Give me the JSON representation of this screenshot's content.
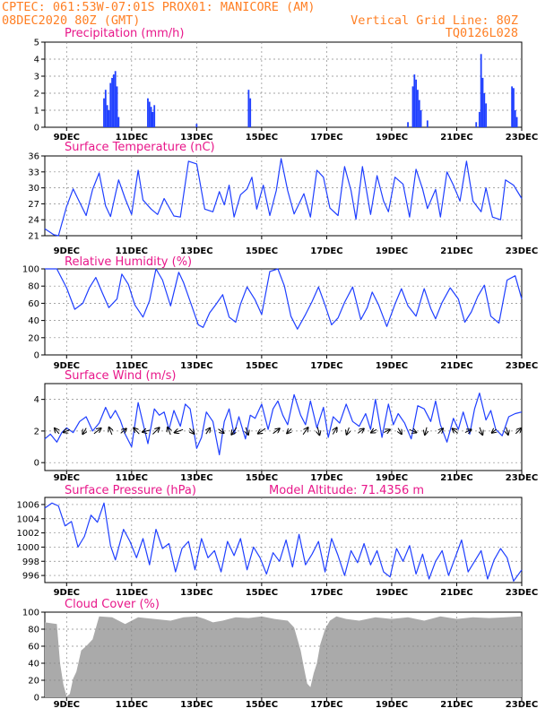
{
  "header": {
    "line1_left": "CPTEC:   061:53W-07:01S   PROX01: MANICORE (AM)",
    "line2_left": "08DEC2020 80Z (GMT)",
    "line2_right": "Vertical Grid Line: 80Z",
    "line3_right": "TQ0126L028"
  },
  "colors": {
    "series": "#1f3fff",
    "title": "#e8178a",
    "header": "#ff7f24",
    "cloud_fill": "#aaaaaa",
    "grid": "#888888"
  },
  "chart_data": [
    {
      "type": "bar",
      "title": "Precipitation (mm/h)",
      "xlabel": "",
      "ylabel": "",
      "ylim": [
        0,
        5
      ],
      "yticks": [
        "0",
        "1",
        "2",
        "3",
        "4",
        "5"
      ],
      "xticks": [
        "9DEC",
        "11DEC",
        "13DEC",
        "15DEC",
        "17DEC",
        "19DEC",
        "21DEC",
        "23DEC"
      ],
      "x_day_range": [
        8.33,
        23.0
      ],
      "grid": true,
      "events": [
        {
          "day": 10.15,
          "value": 1.7
        },
        {
          "day": 10.2,
          "value": 2.2
        },
        {
          "day": 10.25,
          "value": 1.3
        },
        {
          "day": 10.3,
          "value": 1.0
        },
        {
          "day": 10.35,
          "value": 2.6
        },
        {
          "day": 10.4,
          "value": 2.9
        },
        {
          "day": 10.45,
          "value": 3.1
        },
        {
          "day": 10.5,
          "value": 3.3
        },
        {
          "day": 10.55,
          "value": 2.4
        },
        {
          "day": 10.6,
          "value": 0.6
        },
        {
          "day": 11.5,
          "value": 1.7
        },
        {
          "day": 11.55,
          "value": 1.5
        },
        {
          "day": 11.6,
          "value": 1.2
        },
        {
          "day": 11.65,
          "value": 0.9
        },
        {
          "day": 11.7,
          "value": 1.3
        },
        {
          "day": 13.0,
          "value": 0.2
        },
        {
          "day": 14.6,
          "value": 2.2
        },
        {
          "day": 14.65,
          "value": 1.7
        },
        {
          "day": 19.5,
          "value": 0.3
        },
        {
          "day": 19.65,
          "value": 2.4
        },
        {
          "day": 19.7,
          "value": 3.1
        },
        {
          "day": 19.75,
          "value": 2.8
        },
        {
          "day": 19.8,
          "value": 2.2
        },
        {
          "day": 19.85,
          "value": 1.6
        },
        {
          "day": 19.9,
          "value": 1.0
        },
        {
          "day": 20.1,
          "value": 0.4
        },
        {
          "day": 21.6,
          "value": 0.3
        },
        {
          "day": 21.7,
          "value": 0.9
        },
        {
          "day": 21.75,
          "value": 4.3
        },
        {
          "day": 21.8,
          "value": 2.9
        },
        {
          "day": 21.85,
          "value": 2.0
        },
        {
          "day": 21.9,
          "value": 1.4
        },
        {
          "day": 22.7,
          "value": 2.4
        },
        {
          "day": 22.75,
          "value": 2.3
        },
        {
          "day": 22.8,
          "value": 1.0
        },
        {
          "day": 22.85,
          "value": 0.6
        }
      ]
    },
    {
      "type": "line",
      "title": "Surface Temperature (nC)",
      "xlabel": "",
      "ylabel": "",
      "ylim": [
        21,
        36
      ],
      "yticks": [
        "21",
        "24",
        "27",
        "30",
        "33",
        "36"
      ],
      "xticks": [
        "9DEC",
        "11DEC",
        "13DEC",
        "15DEC",
        "17DEC",
        "19DEC",
        "21DEC",
        "23DEC"
      ],
      "x_day_range": [
        8.33,
        23.0
      ],
      "grid": true,
      "x": [
        8.33,
        8.6,
        8.75,
        9.0,
        9.2,
        9.4,
        9.6,
        9.8,
        10.0,
        10.2,
        10.35,
        10.6,
        10.8,
        11.0,
        11.2,
        11.35,
        11.6,
        11.8,
        12.0,
        12.3,
        12.5,
        12.75,
        13.0,
        13.25,
        13.5,
        13.7,
        13.85,
        14.0,
        14.15,
        14.35,
        14.55,
        14.7,
        14.85,
        15.05,
        15.25,
        15.45,
        15.6,
        15.8,
        16.0,
        16.3,
        16.5,
        16.7,
        16.9,
        17.1,
        17.35,
        17.55,
        17.75,
        17.9,
        18.1,
        18.35,
        18.55,
        18.75,
        18.9,
        19.1,
        19.35,
        19.55,
        19.75,
        19.95,
        20.1,
        20.35,
        20.5,
        20.7,
        20.9,
        21.1,
        21.3,
        21.5,
        21.75,
        21.9,
        22.1,
        22.35,
        22.5,
        22.75,
        23.0
      ],
      "y": [
        22.3,
        21.2,
        21.0,
        26.5,
        29.8,
        27.3,
        24.8,
        29.7,
        32.8,
        26.6,
        24.6,
        31.5,
        28.0,
        25.0,
        33.3,
        27.7,
        26.0,
        25.0,
        28.0,
        24.7,
        24.5,
        35.0,
        34.5,
        26.0,
        25.5,
        29.3,
        26.8,
        30.5,
        24.5,
        28.7,
        29.8,
        32.0,
        26.0,
        30.5,
        24.8,
        29.5,
        35.5,
        29.5,
        25.1,
        28.9,
        24.5,
        33.3,
        32.0,
        26.2,
        24.8,
        34.0,
        29.5,
        24.1,
        34.0,
        25.0,
        32.3,
        27.5,
        25.5,
        32.0,
        30.7,
        24.5,
        33.5,
        29.8,
        26.1,
        29.7,
        24.5,
        33.0,
        30.5,
        27.5,
        35.0,
        27.5,
        25.5,
        30.0,
        24.5,
        24.0,
        31.5,
        30.5,
        28.0
      ]
    },
    {
      "type": "line",
      "title": "Relative Humidity (%)",
      "xlabel": "",
      "ylabel": "",
      "ylim": [
        0,
        100
      ],
      "yticks": [
        "0",
        "20",
        "40",
        "60",
        "80",
        "100"
      ],
      "xticks": [
        "9DEC",
        "11DEC",
        "13DEC",
        "15DEC",
        "17DEC",
        "19DEC",
        "21DEC",
        "23DEC"
      ],
      "x_day_range": [
        8.33,
        23.0
      ],
      "grid": true,
      "x": [
        8.33,
        8.7,
        9.0,
        9.25,
        9.5,
        9.7,
        9.9,
        10.1,
        10.3,
        10.55,
        10.7,
        10.9,
        11.1,
        11.35,
        11.55,
        11.75,
        11.95,
        12.2,
        12.45,
        12.6,
        12.85,
        13.05,
        13.2,
        13.4,
        13.6,
        13.8,
        14.0,
        14.2,
        14.35,
        14.55,
        14.8,
        15.0,
        15.25,
        15.5,
        15.7,
        15.9,
        16.1,
        16.35,
        16.55,
        16.75,
        16.95,
        17.15,
        17.35,
        17.55,
        17.8,
        18.05,
        18.25,
        18.4,
        18.6,
        18.85,
        19.1,
        19.3,
        19.5,
        19.75,
        20.0,
        20.2,
        20.35,
        20.55,
        20.8,
        21.05,
        21.25,
        21.45,
        21.65,
        21.85,
        22.05,
        22.3,
        22.55,
        22.8,
        23.0
      ],
      "y": [
        100,
        100,
        78,
        53,
        60,
        78,
        90,
        72,
        55,
        65,
        94,
        82,
        58,
        44,
        63,
        100,
        87,
        57,
        96,
        84,
        57,
        35,
        32,
        49,
        59,
        70,
        44,
        38,
        59,
        79,
        64,
        47,
        97,
        100,
        80,
        45,
        30,
        47,
        62,
        79,
        58,
        35,
        43,
        61,
        79,
        41,
        55,
        73,
        58,
        33,
        59,
        77,
        57,
        45,
        77,
        54,
        42,
        61,
        78,
        65,
        38,
        50,
        68,
        81,
        45,
        37,
        87,
        92,
        65
      ]
    },
    {
      "type": "line",
      "title": "Surface Wind (m/s)",
      "xlabel": "",
      "ylabel": "",
      "ylim": [
        -0.5,
        5.0
      ],
      "yticks": [
        "0",
        "2",
        "4"
      ],
      "xticks": [
        "9DEC",
        "11DEC",
        "13DEC",
        "15DEC",
        "17DEC",
        "19DEC",
        "21DEC",
        "23DEC"
      ],
      "x_day_range": [
        8.33,
        23.0
      ],
      "grid": true,
      "x": [
        8.33,
        8.5,
        8.7,
        8.85,
        9.0,
        9.2,
        9.4,
        9.6,
        9.8,
        10.0,
        10.2,
        10.35,
        10.5,
        10.65,
        10.8,
        11.0,
        11.2,
        11.35,
        11.5,
        11.7,
        11.85,
        12.0,
        12.15,
        12.3,
        12.5,
        12.65,
        12.8,
        13.0,
        13.15,
        13.3,
        13.5,
        13.7,
        13.85,
        14.0,
        14.15,
        14.3,
        14.5,
        14.65,
        14.8,
        15.0,
        15.2,
        15.35,
        15.5,
        15.65,
        15.8,
        16.0,
        16.2,
        16.35,
        16.5,
        16.7,
        16.9,
        17.05,
        17.2,
        17.4,
        17.6,
        17.8,
        18.0,
        18.2,
        18.35,
        18.5,
        18.7,
        18.9,
        19.05,
        19.2,
        19.4,
        19.6,
        19.8,
        20.0,
        20.2,
        20.35,
        20.5,
        20.7,
        20.9,
        21.05,
        21.2,
        21.4,
        21.55,
        21.7,
        21.9,
        22.05,
        22.2,
        22.4,
        22.6,
        22.8,
        23.0
      ],
      "y": [
        1.5,
        1.8,
        1.3,
        1.9,
        2.2,
        1.9,
        2.6,
        2.9,
        2.0,
        2.5,
        3.5,
        2.8,
        3.3,
        2.7,
        1.8,
        1.0,
        3.8,
        2.5,
        1.2,
        3.4,
        3.0,
        3.2,
        2.1,
        3.3,
        2.3,
        3.7,
        3.4,
        0.9,
        1.6,
        3.2,
        2.6,
        0.5,
        2.6,
        3.4,
        1.8,
        2.9,
        1.5,
        3.0,
        2.8,
        3.7,
        2.1,
        3.4,
        3.9,
        3.0,
        2.4,
        4.3,
        3.0,
        2.4,
        3.9,
        2.2,
        3.5,
        1.6,
        2.9,
        2.5,
        3.7,
        2.6,
        2.3,
        3.1,
        2.1,
        4.0,
        1.6,
        3.7,
        2.4,
        3.1,
        2.5,
        1.5,
        3.6,
        3.4,
        2.6,
        3.9,
        2.4,
        1.3,
        2.8,
        2.1,
        3.2,
        1.8,
        3.4,
        4.4,
        2.7,
        3.3,
        2.1,
        1.7,
        2.9,
        3.1,
        3.2
      ],
      "vectors": [
        {
          "day": 8.7,
          "dx": -0.45,
          "dy": 0.55
        },
        {
          "day": 9.0,
          "dx": -0.65,
          "dy": -0.25
        },
        {
          "day": 9.55,
          "dx": -0.35,
          "dy": -0.6
        },
        {
          "day": 9.95,
          "dx": 0.7,
          "dy": 0.55
        },
        {
          "day": 10.35,
          "dx": -0.3,
          "dy": 0.75
        },
        {
          "day": 10.75,
          "dx": 0.55,
          "dy": 0.45
        },
        {
          "day": 11.15,
          "dx": -0.55,
          "dy": 0.6
        },
        {
          "day": 11.45,
          "dx": -0.75,
          "dy": -0.2
        },
        {
          "day": 11.75,
          "dx": 0.65,
          "dy": 0.65
        },
        {
          "day": 12.15,
          "dx": -0.3,
          "dy": 0.75
        },
        {
          "day": 12.45,
          "dx": -0.85,
          "dy": -0.3
        },
        {
          "day": 12.85,
          "dx": 0.45,
          "dy": -0.55
        },
        {
          "day": 13.35,
          "dx": 0.4,
          "dy": 0.6
        },
        {
          "day": 13.75,
          "dx": 0.55,
          "dy": -0.4
        },
        {
          "day": 14.15,
          "dx": -0.5,
          "dy": -0.7
        },
        {
          "day": 14.55,
          "dx": 0.25,
          "dy": -0.75
        },
        {
          "day": 15.0,
          "dx": -0.75,
          "dy": -0.5
        },
        {
          "day": 15.45,
          "dx": 0.65,
          "dy": 0.5
        },
        {
          "day": 15.85,
          "dx": -0.45,
          "dy": -0.45
        },
        {
          "day": 16.35,
          "dx": 0.5,
          "dy": 0.7
        },
        {
          "day": 16.75,
          "dx": 0.2,
          "dy": -0.8
        },
        {
          "day": 17.25,
          "dx": 0.4,
          "dy": 0.65
        },
        {
          "day": 17.65,
          "dx": -0.25,
          "dy": -0.7
        },
        {
          "day": 18.05,
          "dx": 0.6,
          "dy": 0.45
        },
        {
          "day": 18.45,
          "dx": -0.55,
          "dy": -0.3
        },
        {
          "day": 18.85,
          "dx": 0.6,
          "dy": 0.3
        },
        {
          "day": 19.25,
          "dx": 0.35,
          "dy": -0.6
        },
        {
          "day": 19.65,
          "dx": 0.7,
          "dy": -0.3
        },
        {
          "day": 20.05,
          "dx": -0.2,
          "dy": -0.75
        },
        {
          "day": 20.5,
          "dx": 0.5,
          "dy": 0.5
        },
        {
          "day": 20.95,
          "dx": -0.55,
          "dy": 0.45
        },
        {
          "day": 21.35,
          "dx": 0.6,
          "dy": 0.3
        },
        {
          "day": 21.75,
          "dx": 0.3,
          "dy": -0.75
        },
        {
          "day": 22.15,
          "dx": -0.45,
          "dy": -0.35
        },
        {
          "day": 22.55,
          "dx": 0.2,
          "dy": -0.75
        },
        {
          "day": 22.9,
          "dx": 0.55,
          "dy": 0.55
        }
      ]
    },
    {
      "type": "line",
      "title": "Surface Pressure (hPa)",
      "annotation": "Model Altitude: 71.4356 m",
      "xlabel": "",
      "ylabel": "",
      "ylim": [
        995,
        1007
      ],
      "yticks": [
        "996",
        "998",
        "1000",
        "1002",
        "1004",
        "1006"
      ],
      "xticks": [
        "9DEC",
        "11DEC",
        "13DEC",
        "15DEC",
        "17DEC",
        "19DEC",
        "21DEC",
        "23DEC"
      ],
      "x_day_range": [
        8.33,
        23.0
      ],
      "grid": true,
      "x": [
        8.33,
        8.55,
        8.75,
        8.95,
        9.15,
        9.35,
        9.55,
        9.75,
        9.95,
        10.15,
        10.35,
        10.5,
        10.75,
        10.95,
        11.15,
        11.35,
        11.55,
        11.75,
        11.95,
        12.15,
        12.35,
        12.55,
        12.75,
        12.95,
        13.15,
        13.35,
        13.55,
        13.75,
        13.95,
        14.15,
        14.35,
        14.55,
        14.75,
        14.95,
        15.15,
        15.35,
        15.55,
        15.75,
        15.95,
        16.15,
        16.35,
        16.55,
        16.75,
        16.95,
        17.15,
        17.35,
        17.55,
        17.75,
        17.95,
        18.15,
        18.35,
        18.55,
        18.75,
        18.95,
        19.15,
        19.35,
        19.55,
        19.75,
        19.95,
        20.15,
        20.35,
        20.55,
        20.75,
        20.95,
        21.15,
        21.35,
        21.55,
        21.75,
        21.95,
        22.15,
        22.35,
        22.55,
        22.75,
        23.0
      ],
      "y": [
        1005.5,
        1006.2,
        1005.8,
        1003.0,
        1003.6,
        1000.0,
        1001.5,
        1004.5,
        1003.5,
        1006.2,
        1000.2,
        998.2,
        1002.5,
        1000.8,
        998.5,
        1001.2,
        997.5,
        1002.5,
        999.8,
        1000.5,
        996.5,
        999.8,
        1000.8,
        996.8,
        1001.2,
        998.5,
        999.5,
        996.5,
        1000.8,
        998.8,
        1001.2,
        996.8,
        1000.0,
        998.5,
        996.2,
        999.2,
        998.0,
        1001.0,
        997.2,
        1001.8,
        997.5,
        999.0,
        1000.8,
        996.5,
        1001.2,
        998.8,
        996.0,
        999.5,
        997.8,
        1000.5,
        997.5,
        999.5,
        996.5,
        995.8,
        999.8,
        998.0,
        1000.2,
        996.2,
        999.0,
        995.5,
        998.0,
        999.5,
        996.0,
        998.5,
        1001.0,
        996.5,
        998.0,
        999.5,
        995.5,
        998.2,
        999.8,
        998.5,
        995.2,
        996.8
      ]
    },
    {
      "type": "area",
      "title": "Cloud Cover (%)",
      "xlabel": "",
      "ylabel": "",
      "ylim": [
        0,
        100
      ],
      "yticks": [
        "0",
        "20",
        "40",
        "60",
        "80",
        "100"
      ],
      "xticks": [
        "9DEC",
        "11DEC",
        "13DEC",
        "15DEC",
        "17DEC",
        "19DEC",
        "21DEC",
        "23DEC"
      ],
      "x_day_range": [
        8.33,
        23.0
      ],
      "grid": true,
      "x": [
        8.33,
        8.7,
        8.8,
        8.9,
        9.0,
        9.1,
        9.2,
        9.3,
        9.45,
        9.6,
        9.8,
        10.0,
        10.4,
        10.8,
        11.2,
        11.7,
        12.2,
        12.6,
        13.0,
        13.25,
        13.5,
        13.8,
        14.2,
        14.6,
        15.0,
        15.4,
        15.8,
        16.0,
        16.2,
        16.3,
        16.4,
        16.5,
        16.6,
        16.7,
        16.8,
        16.95,
        17.1,
        17.3,
        17.6,
        18.0,
        18.5,
        19.0,
        19.5,
        20.0,
        20.5,
        21.0,
        21.5,
        22.0,
        22.5,
        23.0
      ],
      "y": [
        88,
        86,
        40,
        15,
        1,
        4,
        22,
        30,
        55,
        60,
        68,
        95,
        94,
        86,
        94,
        92,
        90,
        94,
        95,
        92,
        88,
        90,
        94,
        93,
        95,
        92,
        90,
        82,
        55,
        35,
        16,
        12,
        28,
        40,
        62,
        80,
        90,
        95,
        92,
        90,
        94,
        92,
        94,
        90,
        95,
        92,
        94,
        93,
        94,
        95
      ]
    }
  ]
}
